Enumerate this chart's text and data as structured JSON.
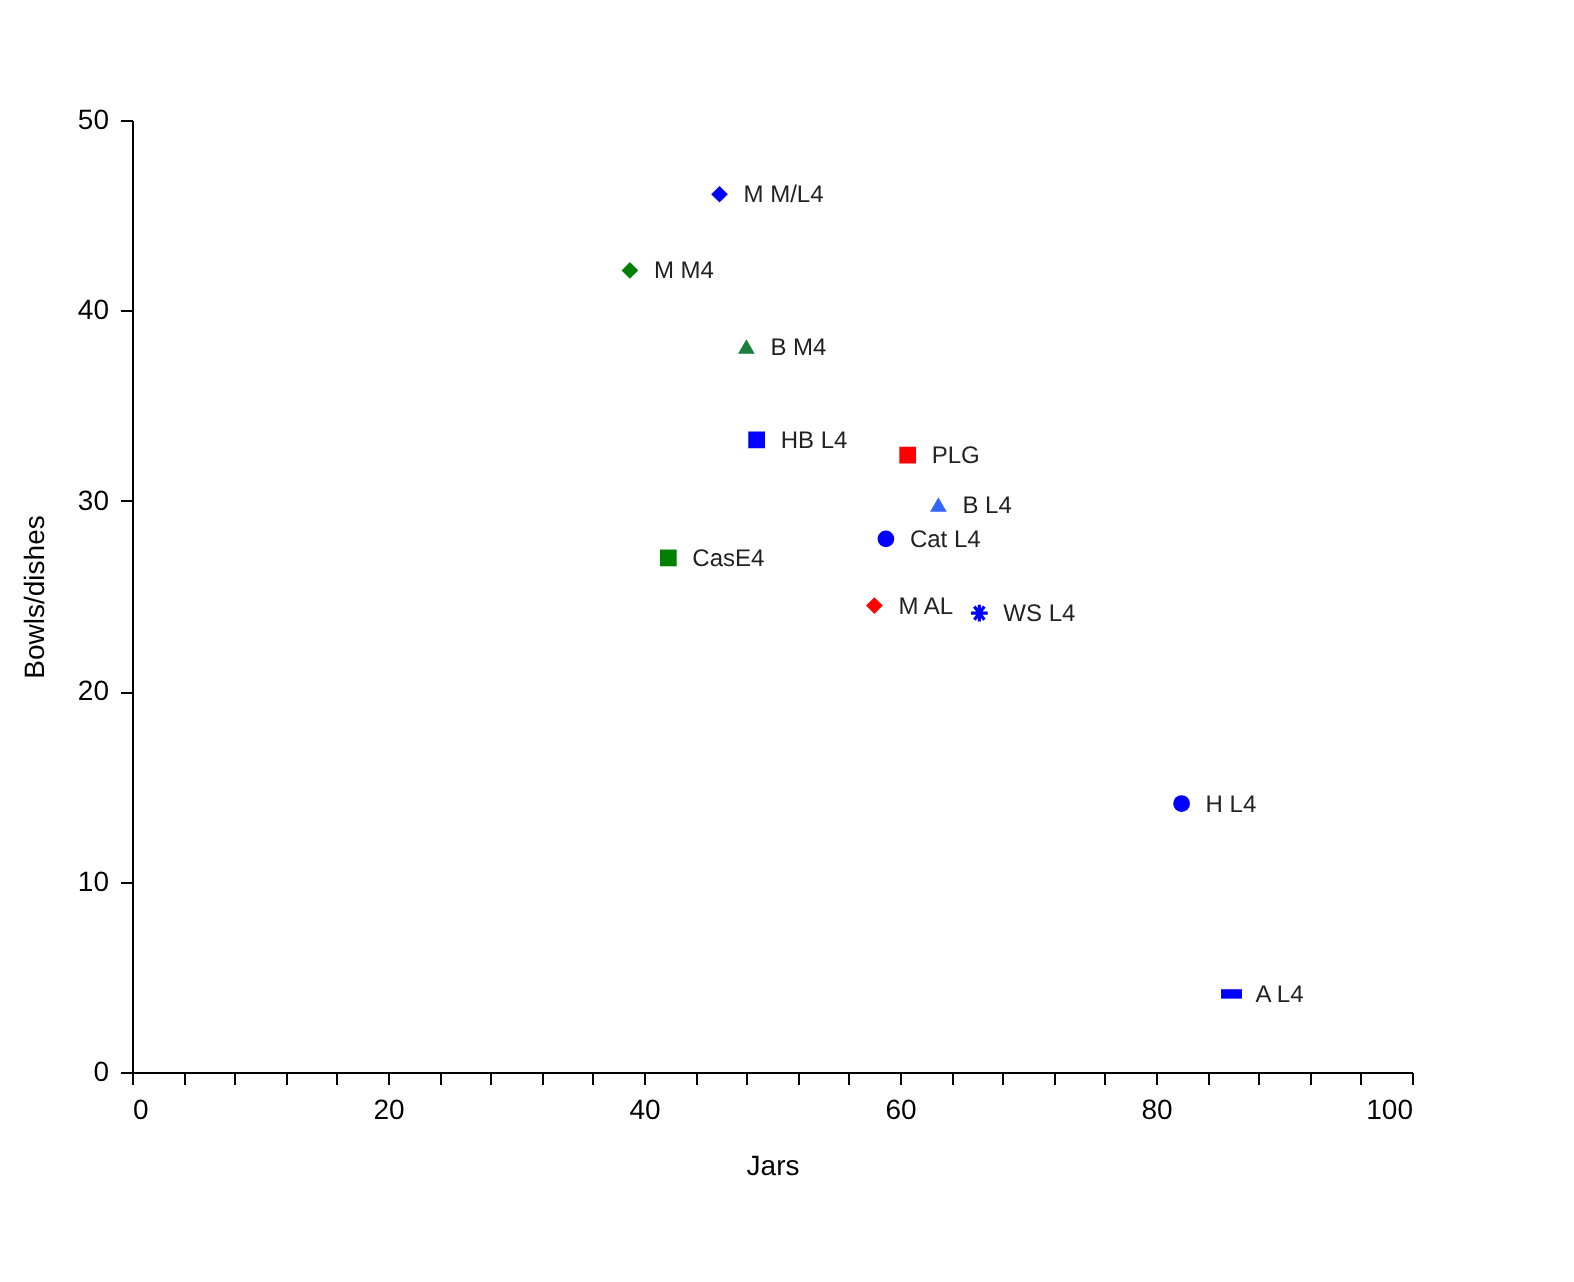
{
  "chart_data": {
    "type": "scatter",
    "xlabel": "Jars",
    "ylabel": "Bowls/dishes",
    "xlim": [
      0,
      100
    ],
    "ylim": [
      0,
      50
    ],
    "xticks": [
      0,
      {
        "value": 4,
        "label": null
      },
      {
        "value": 8,
        "label": null
      },
      {
        "value": 12,
        "label": null
      },
      {
        "value": 16,
        "label": null
      },
      20,
      {
        "value": 24,
        "label": null
      },
      {
        "value": 28,
        "label": null
      },
      {
        "value": 32,
        "label": null
      },
      {
        "value": 36,
        "label": null
      },
      40,
      {
        "value": 44,
        "label": null
      },
      {
        "value": 48,
        "label": null
      },
      {
        "value": 52,
        "label": null
      },
      {
        "value": 56,
        "label": null
      },
      60,
      {
        "value": 64,
        "label": null
      },
      {
        "value": 68,
        "label": null
      },
      {
        "value": 72,
        "label": null
      },
      {
        "value": 76,
        "label": null
      },
      80,
      {
        "value": 84,
        "label": null
      },
      {
        "value": 88,
        "label": null
      },
      {
        "value": 92,
        "label": null
      },
      {
        "value": 96,
        "label": null
      },
      100
    ],
    "yticks": [
      0,
      10,
      20,
      30,
      40,
      50
    ],
    "series": [
      {
        "name": "M M/L4",
        "color": "#0000ff",
        "marker": "diamond",
        "x": [
          45.9
        ],
        "values": [
          46.1
        ]
      },
      {
        "name": "M M4",
        "color": "#007f00",
        "marker": "diamond",
        "x": [
          38.9
        ],
        "values": [
          42.1
        ]
      },
      {
        "name": "B M4",
        "color": "#1a7f3a",
        "marker": "triangle",
        "x": [
          48.0
        ],
        "values": [
          38.1
        ]
      },
      {
        "name": "HB L4",
        "color": "#0000ff",
        "marker": "square",
        "x": [
          48.8
        ],
        "values": [
          33.2
        ]
      },
      {
        "name": "PLG",
        "color": "#ff0000",
        "marker": "square",
        "x": [
          60.6
        ],
        "values": [
          32.4
        ]
      },
      {
        "name": "B L4",
        "color": "#3366ff",
        "marker": "triangle",
        "x": [
          63.0
        ],
        "values": [
          29.8
        ]
      },
      {
        "name": "Cat L4",
        "color": "#0000ff",
        "marker": "circle",
        "x": [
          58.9
        ],
        "values": [
          28.0
        ]
      },
      {
        "name": "CasE4",
        "color": "#007f00",
        "marker": "square",
        "x": [
          41.9
        ],
        "values": [
          27.0
        ]
      },
      {
        "name": "M AL",
        "color": "#ff0000",
        "marker": "diamond",
        "x": [
          58.0
        ],
        "values": [
          24.5
        ]
      },
      {
        "name": "WS L4",
        "color": "#0000ff",
        "marker": "cross",
        "x": [
          66.2
        ],
        "values": [
          24.1
        ]
      },
      {
        "name": "H L4",
        "color": "#0000ff",
        "marker": "circle",
        "x": [
          82.0
        ],
        "values": [
          14.1
        ]
      },
      {
        "name": "A L4",
        "color": "#0000ff",
        "x": [
          85.9
        ],
        "values": [
          4.1
        ]
      }
    ]
  }
}
